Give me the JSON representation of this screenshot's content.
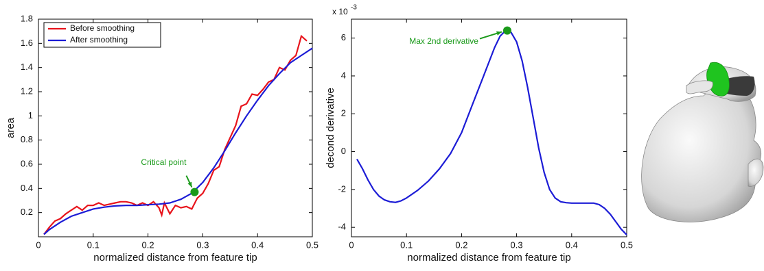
{
  "chart_data": [
    {
      "type": "line",
      "xlabel": "normalized distance from feature tip",
      "ylabel": "area",
      "xlim": [
        0,
        0.5
      ],
      "ylim": [
        0,
        1.8
      ],
      "xticks": [
        0,
        0.1,
        0.2,
        0.3,
        0.4,
        0.5
      ],
      "yticks": [
        0.2,
        0.4,
        0.6,
        0.8,
        1,
        1.2,
        1.4,
        1.6,
        1.8
      ],
      "legend": "upper left",
      "series": [
        {
          "name": "Before smoothing",
          "color": "#e8141c",
          "x": [
            0.01,
            0.02,
            0.03,
            0.04,
            0.05,
            0.06,
            0.07,
            0.08,
            0.09,
            0.1,
            0.11,
            0.12,
            0.13,
            0.14,
            0.15,
            0.16,
            0.17,
            0.18,
            0.19,
            0.2,
            0.21,
            0.22,
            0.225,
            0.23,
            0.24,
            0.25,
            0.26,
            0.27,
            0.28,
            0.29,
            0.3,
            0.31,
            0.32,
            0.33,
            0.34,
            0.35,
            0.36,
            0.37,
            0.38,
            0.39,
            0.4,
            0.41,
            0.42,
            0.43,
            0.44,
            0.45,
            0.46,
            0.47,
            0.48,
            0.49
          ],
          "values": [
            0.02,
            0.08,
            0.13,
            0.15,
            0.19,
            0.22,
            0.25,
            0.22,
            0.26,
            0.26,
            0.28,
            0.26,
            0.27,
            0.28,
            0.29,
            0.29,
            0.28,
            0.26,
            0.28,
            0.26,
            0.29,
            0.24,
            0.18,
            0.28,
            0.19,
            0.26,
            0.24,
            0.25,
            0.23,
            0.32,
            0.36,
            0.44,
            0.55,
            0.58,
            0.72,
            0.82,
            0.92,
            1.08,
            1.1,
            1.18,
            1.17,
            1.22,
            1.28,
            1.3,
            1.4,
            1.38,
            1.46,
            1.5,
            1.66,
            1.62
          ]
        },
        {
          "name": "After smoothing",
          "color": "#1c1cd6",
          "x": [
            0.01,
            0.02,
            0.04,
            0.06,
            0.08,
            0.1,
            0.12,
            0.14,
            0.16,
            0.18,
            0.2,
            0.22,
            0.24,
            0.26,
            0.28,
            0.3,
            0.32,
            0.34,
            0.36,
            0.38,
            0.4,
            0.42,
            0.44,
            0.46,
            0.48,
            0.5
          ],
          "values": [
            0.02,
            0.06,
            0.12,
            0.17,
            0.2,
            0.23,
            0.245,
            0.255,
            0.26,
            0.26,
            0.265,
            0.27,
            0.28,
            0.31,
            0.36,
            0.45,
            0.57,
            0.71,
            0.86,
            1.0,
            1.13,
            1.25,
            1.35,
            1.44,
            1.5,
            1.56
          ]
        }
      ],
      "highlight": {
        "label": "Critical point",
        "x": 0.285,
        "y": 0.37,
        "color": "#1a9a1a"
      }
    },
    {
      "type": "line",
      "xlabel": "normalized distance from feature tip",
      "ylabel": "decond derivative",
      "axis_multiplier": {
        "base": "x 10",
        "exponent": "-3"
      },
      "xlim": [
        0,
        0.5
      ],
      "ylim": [
        -4.5,
        7
      ],
      "xticks": [
        0,
        0.1,
        0.2,
        0.3,
        0.4,
        0.5
      ],
      "yticks": [
        -4,
        -2,
        0,
        2,
        4,
        6
      ],
      "series": [
        {
          "color": "#1c1cd6",
          "x": [
            0.01,
            0.02,
            0.03,
            0.04,
            0.05,
            0.06,
            0.07,
            0.08,
            0.09,
            0.1,
            0.12,
            0.14,
            0.16,
            0.18,
            0.2,
            0.22,
            0.24,
            0.26,
            0.27,
            0.28,
            0.29,
            0.3,
            0.31,
            0.32,
            0.33,
            0.34,
            0.35,
            0.36,
            0.37,
            0.38,
            0.39,
            0.4,
            0.42,
            0.44,
            0.45,
            0.46,
            0.47,
            0.48,
            0.49,
            0.5
          ],
          "values": [
            -0.4,
            -0.9,
            -1.5,
            -2.0,
            -2.35,
            -2.55,
            -2.65,
            -2.68,
            -2.6,
            -2.45,
            -2.05,
            -1.55,
            -0.9,
            -0.1,
            1.0,
            2.5,
            4.0,
            5.5,
            6.1,
            6.4,
            6.3,
            5.8,
            4.8,
            3.4,
            1.8,
            0.2,
            -1.1,
            -2.0,
            -2.45,
            -2.65,
            -2.7,
            -2.72,
            -2.72,
            -2.72,
            -2.8,
            -3.0,
            -3.3,
            -3.7,
            -4.1,
            -4.4
          ]
        }
      ],
      "highlight": {
        "label": "Max 2nd derivative",
        "x": 0.283,
        "y": 6.4,
        "color": "#1a9a1a"
      }
    }
  ]
}
